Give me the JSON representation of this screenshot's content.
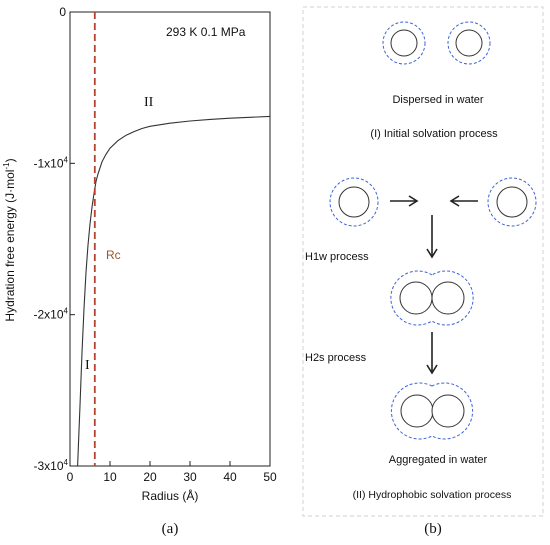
{
  "chart_data": {
    "type": "line",
    "annotation_condition": "293 K  0.1 MPa",
    "ylabel": "Hydration free energy (J·mol",
    "ylabel_sup": "-1",
    "ylabel_close": ")",
    "xlabel": "Radius (Å)",
    "xlim": [
      0,
      50
    ],
    "ylim": [
      -30000,
      0
    ],
    "xticks": [
      "0",
      "10",
      "20",
      "30",
      "40",
      "50"
    ],
    "yticks": [
      {
        "value": 0,
        "label": "0",
        "sup": ""
      },
      {
        "value": -10000,
        "label": "-1x10",
        "sup": "4"
      },
      {
        "value": -20000,
        "label": "-2x10",
        "sup": "4"
      },
      {
        "value": -30000,
        "label": "-3x10",
        "sup": "4"
      }
    ],
    "series": [
      {
        "x": [
          1.9,
          2.5,
          3,
          3.5,
          4,
          4.5,
          5,
          5.5,
          6,
          6.5,
          7,
          8,
          9,
          10,
          12,
          14,
          16,
          18,
          20,
          25,
          30,
          35,
          40,
          45,
          50
        ],
        "y": [
          -30000,
          -26000,
          -22500,
          -19600,
          -17200,
          -15400,
          -14000,
          -12900,
          -12000,
          -11200,
          -10700,
          -9900,
          -9400,
          -9000,
          -8500,
          -8150,
          -7900,
          -7700,
          -7550,
          -7350,
          -7200,
          -7100,
          -7020,
          -6960,
          -6900
        ],
        "color": "#333333"
      }
    ],
    "vline": {
      "x": 6.2,
      "color": "#b5432f",
      "label": "Rc"
    },
    "region_labels": {
      "I": "I",
      "II": "II"
    },
    "panel_label": "(a)"
  },
  "diagram": {
    "colors": {
      "shell": "#3f63d6",
      "particle": "#333333",
      "arrow": "#222222"
    },
    "labels": {
      "dispersed": "Dispersed in water",
      "initial_process": "(I) Initial solvation process",
      "h1w": "H1w process",
      "h2s": "H2s process",
      "aggregated": "Aggregated in water",
      "hydrophobic_process": "(II) Hydrophobic solvation process"
    },
    "panel_label": "(b)"
  }
}
